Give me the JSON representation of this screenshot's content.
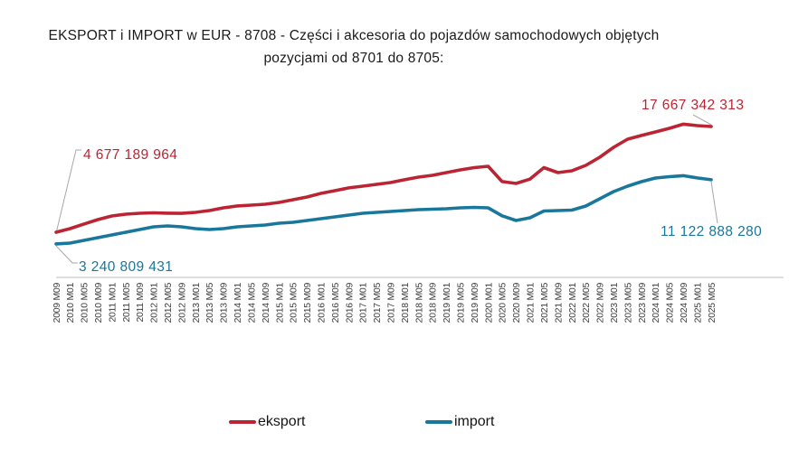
{
  "title": {
    "line1": "EKSPORT i IMPORT w EUR - 8708 - Części i akcesoria do pojazdów samochodowych objętych",
    "line2": "pozycjami od 8701 do 8705:"
  },
  "chart_data": {
    "type": "line",
    "title": "EKSPORT i IMPORT w EUR - 8708 - Części i akcesoria do pojazdów samochodowych objętych pozycjami od 8701 do 8705:",
    "unit": "EUR",
    "values_scale": "billions of EUR (intermediate points estimated from line position; first and last points exact per data labels)",
    "grid": false,
    "y_axis_visible": false,
    "x_axis_visible": true,
    "legend_position": "bottom-center",
    "ylim": [
      3.0,
      18.5
    ],
    "x_tick_labels": [
      "2009 M09",
      "2010 M01",
      "2010 M05",
      "2010 M09",
      "2011 M01",
      "2011 M05",
      "2011 M09",
      "2012 M01",
      "2012 M05",
      "2012 M09",
      "2013 M01",
      "2013 M05",
      "2013 M09",
      "2014 M01",
      "2014 M05",
      "2014 M09",
      "2015 M01",
      "2015 M05",
      "2015 M09",
      "2016 M01",
      "2016 M05",
      "2016 M09",
      "2017 M01",
      "2017 M05",
      "2017 M09",
      "2018 M01",
      "2018 M05",
      "2018 M09",
      "2019 M01",
      "2019 M05",
      "2019 M09",
      "2020 M01",
      "2020 M05",
      "2020 M09",
      "2021 M01",
      "2021 M05",
      "2021 M09",
      "2022 M01",
      "2022 M05",
      "2022 M09",
      "2023 M01",
      "2023 M05",
      "2023 M09",
      "2024 M01",
      "2024 M05",
      "2024 M09",
      "2025 M01",
      "2025 M05"
    ],
    "series": [
      {
        "name": "eksport",
        "color": "#bb2433",
        "first_value_exact": "4 677 189 964",
        "last_value_exact": "17 667 342 313",
        "values": [
          4.677,
          5.12,
          5.68,
          6.23,
          6.67,
          6.9,
          7.01,
          7.06,
          7.02,
          7.0,
          7.12,
          7.34,
          7.67,
          7.9,
          8.01,
          8.12,
          8.34,
          8.67,
          9.0,
          9.45,
          9.78,
          10.12,
          10.34,
          10.56,
          10.78,
          11.12,
          11.45,
          11.67,
          12.0,
          12.34,
          12.61,
          12.78,
          10.9,
          10.67,
          11.2,
          12.61,
          12.0,
          12.22,
          12.89,
          13.89,
          15.11,
          16.11,
          16.56,
          17.0,
          17.44,
          17.95,
          17.78,
          17.667
        ]
      },
      {
        "name": "import",
        "color": "#19779b",
        "first_value_exact": "3 240 809 431",
        "last_value_exact": "11 122 888 280",
        "values": [
          3.241,
          3.34,
          3.67,
          4.01,
          4.34,
          4.67,
          5.01,
          5.34,
          5.45,
          5.34,
          5.12,
          5.01,
          5.12,
          5.34,
          5.45,
          5.56,
          5.78,
          5.9,
          6.12,
          6.34,
          6.56,
          6.78,
          7.01,
          7.12,
          7.23,
          7.34,
          7.45,
          7.51,
          7.56,
          7.67,
          7.73,
          7.67,
          6.7,
          6.12,
          6.45,
          7.28,
          7.34,
          7.39,
          7.89,
          8.78,
          9.67,
          10.34,
          10.89,
          11.34,
          11.5,
          11.62,
          11.35,
          11.123
        ]
      }
    ],
    "annotations": [
      {
        "series": "eksport",
        "point": "2009 M09",
        "label": "4 677 189 964"
      },
      {
        "series": "eksport",
        "point": "2025 M05",
        "label": "17 667 342 313"
      },
      {
        "series": "import",
        "point": "2009 M09",
        "label": "3 240 809 431"
      },
      {
        "series": "import",
        "point": "2025 M05",
        "label": "11 122 888 280"
      }
    ],
    "legend": [
      {
        "label": "eksport"
      },
      {
        "label": "import"
      }
    ],
    "axis": {
      "x_start": "2009 M09",
      "x_end": "2025 M05"
    }
  },
  "colors": {
    "eksport": "#bb2433",
    "import": "#19779b",
    "axis_line": "#bdbdbd",
    "callout_line": "#a8a8a8",
    "tick_text": "#3f3f3f"
  }
}
